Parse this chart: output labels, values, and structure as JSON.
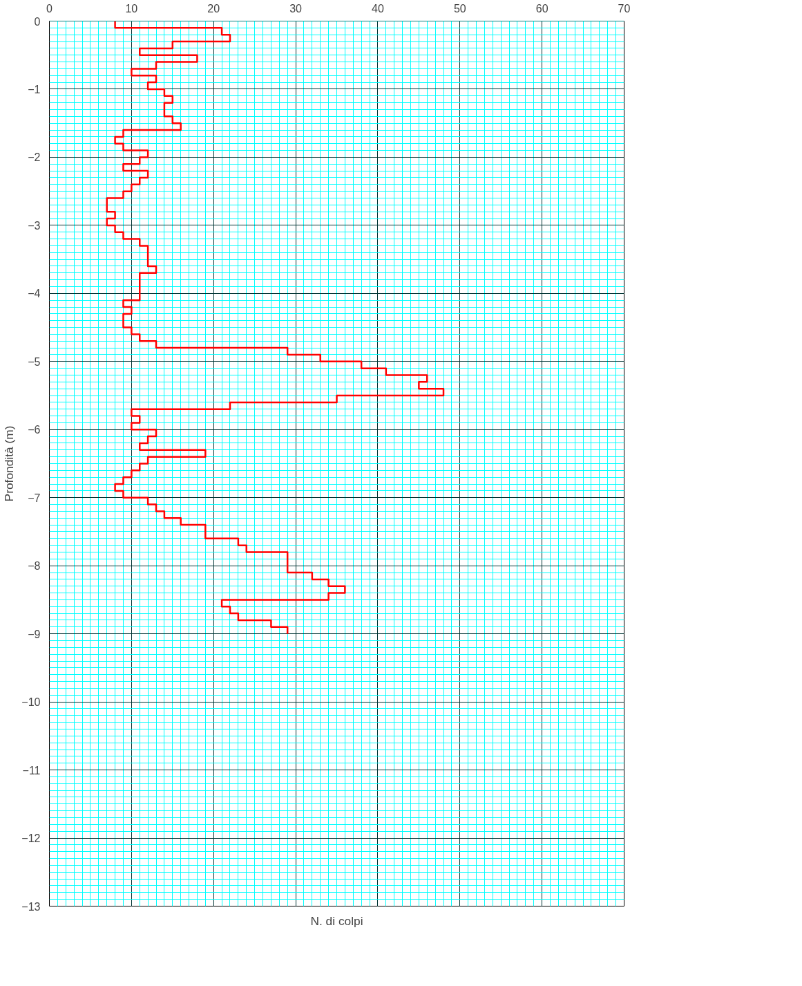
{
  "chart_data": {
    "type": "line",
    "xlabel": "N. di colpi",
    "ylabel": "Profondità (m)",
    "xlim": [
      0,
      70
    ],
    "xticks": [
      0,
      10,
      20,
      30,
      40,
      50,
      60,
      70
    ],
    "ylim": [
      -13,
      0
    ],
    "yticks": [
      -13,
      -12,
      -11,
      -10,
      -9,
      -8,
      -7,
      -6,
      -5,
      -4,
      -3,
      -2,
      -1,
      0
    ],
    "grid": true,
    "marker": "none",
    "line_style": "solid",
    "series": [
      {
        "color": "#ff0000",
        "x": [
          8,
          8,
          21,
          21,
          22,
          22,
          15,
          15,
          11,
          11,
          18,
          18,
          13,
          13,
          10,
          10,
          13,
          13,
          12,
          12,
          14,
          14,
          15,
          15,
          14,
          14,
          14,
          14,
          15,
          15,
          16,
          16,
          9,
          9,
          8,
          8,
          9,
          9,
          12,
          12,
          11,
          11,
          9,
          9,
          12,
          12,
          11,
          11,
          10,
          10,
          9,
          9,
          7,
          7,
          7,
          7,
          8,
          8,
          7,
          7,
          8,
          8,
          9,
          9,
          11,
          11,
          12,
          12,
          12,
          12,
          12,
          12,
          13,
          13,
          11,
          11,
          11,
          11,
          11,
          11,
          11,
          11,
          9,
          9,
          10,
          10,
          9,
          9,
          9,
          9,
          10,
          10,
          11,
          11,
          13,
          13,
          29,
          29,
          33,
          33,
          38,
          38,
          41,
          41,
          46,
          46,
          45,
          45,
          48,
          48,
          35,
          35,
          22,
          22,
          10,
          10,
          11,
          11,
          10,
          10,
          13,
          13,
          12,
          12,
          11,
          11,
          19,
          19,
          12,
          12,
          11,
          11,
          10,
          10,
          9,
          9,
          8,
          8,
          9,
          9,
          12,
          12,
          13,
          13,
          14,
          14,
          16,
          16,
          19,
          19,
          19,
          19,
          23,
          23,
          24,
          24,
          29,
          29,
          29,
          29,
          29,
          29,
          32,
          32,
          34,
          34,
          36,
          36,
          34,
          34,
          21,
          21,
          22,
          22,
          23,
          23,
          27,
          27,
          29,
          29
        ],
        "values": [
          0,
          -0.1,
          -0.1,
          -0.2,
          -0.2,
          -0.3,
          -0.3,
          -0.4,
          -0.4,
          -0.5,
          -0.5,
          -0.6,
          -0.6,
          -0.7,
          -0.7,
          -0.8,
          -0.8,
          -0.9,
          -0.9,
          -1.0,
          -1.0,
          -1.1,
          -1.1,
          -1.2,
          -1.2,
          -1.3,
          -1.3,
          -1.4,
          -1.4,
          -1.5,
          -1.5,
          -1.6,
          -1.6,
          -1.7,
          -1.7,
          -1.8,
          -1.8,
          -1.9,
          -1.9,
          -2.0,
          -2.0,
          -2.1,
          -2.1,
          -2.2,
          -2.2,
          -2.3,
          -2.3,
          -2.4,
          -2.4,
          -2.5,
          -2.5,
          -2.6,
          -2.6,
          -2.7,
          -2.7,
          -2.8,
          -2.8,
          -2.9,
          -2.9,
          -3.0,
          -3.0,
          -3.1,
          -3.1,
          -3.2,
          -3.2,
          -3.3,
          -3.3,
          -3.4,
          -3.4,
          -3.5,
          -3.5,
          -3.6,
          -3.6,
          -3.7,
          -3.7,
          -3.8,
          -3.8,
          -3.9,
          -3.9,
          -4.0,
          -4.0,
          -4.1,
          -4.1,
          -4.2,
          -4.2,
          -4.3,
          -4.3,
          -4.4,
          -4.4,
          -4.5,
          -4.5,
          -4.6,
          -4.6,
          -4.7,
          -4.7,
          -4.8,
          -4.8,
          -4.9,
          -4.9,
          -5.0,
          -5.0,
          -5.1,
          -5.1,
          -5.2,
          -5.2,
          -5.3,
          -5.3,
          -5.4,
          -5.4,
          -5.5,
          -5.5,
          -5.6,
          -5.6,
          -5.7,
          -5.7,
          -5.8,
          -5.8,
          -5.9,
          -5.9,
          -6.0,
          -6.0,
          -6.1,
          -6.1,
          -6.2,
          -6.2,
          -6.3,
          -6.3,
          -6.4,
          -6.4,
          -6.5,
          -6.5,
          -6.6,
          -6.6,
          -6.7,
          -6.7,
          -6.8,
          -6.8,
          -6.9,
          -6.9,
          -7.0,
          -7.0,
          -7.1,
          -7.1,
          -7.2,
          -7.2,
          -7.3,
          -7.3,
          -7.4,
          -7.4,
          -7.5,
          -7.5,
          -7.6,
          -7.6,
          -7.7,
          -7.7,
          -7.8,
          -7.8,
          -7.9,
          -7.9,
          -8.0,
          -8.0,
          -8.1,
          -8.1,
          -8.2,
          -8.2,
          -8.3,
          -8.3,
          -8.4,
          -8.4,
          -8.5,
          -8.5,
          -8.6,
          -8.6,
          -8.7,
          -8.7,
          -8.8,
          -8.8,
          -8.9,
          -8.9,
          -9.0
        ]
      }
    ]
  }
}
